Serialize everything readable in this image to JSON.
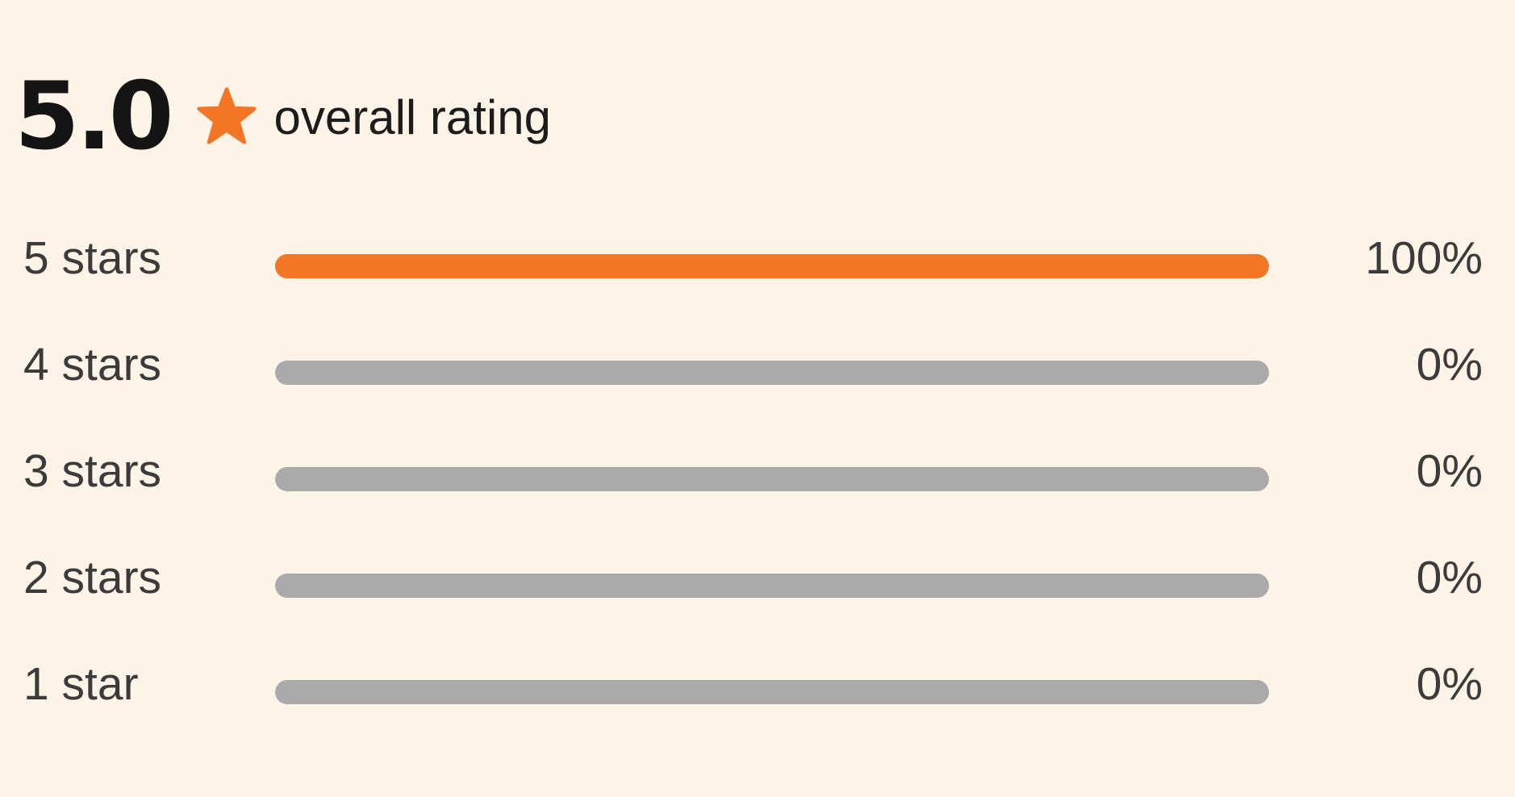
{
  "summary": {
    "score": "5.0",
    "label": "overall rating",
    "icon": "star-icon",
    "accent_color": "#f27623"
  },
  "breakdown": [
    {
      "label": "5 stars",
      "percent_text": "100%",
      "fraction": 1.0
    },
    {
      "label": "4 stars",
      "percent_text": "0%",
      "fraction": 0
    },
    {
      "label": "3 stars",
      "percent_text": "0%",
      "fraction": 0
    },
    {
      "label": "2 stars",
      "percent_text": "0%",
      "fraction": 0
    },
    {
      "label": "1 star",
      "percent_text": "0%",
      "fraction": 0
    }
  ],
  "colors": {
    "background": "#fdf3e7",
    "bar_fill": "#f27623",
    "bar_track": "#aaaaaa"
  }
}
